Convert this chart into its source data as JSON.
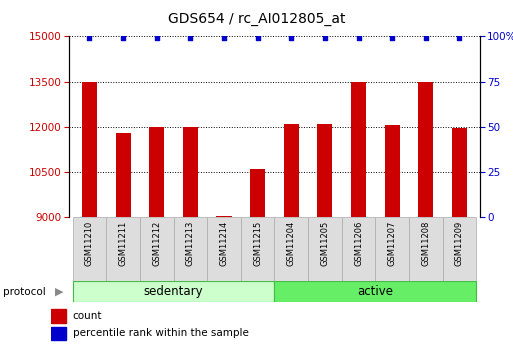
{
  "title": "GDS654 / rc_AI012805_at",
  "samples": [
    "GSM11210",
    "GSM11211",
    "GSM11212",
    "GSM11213",
    "GSM11214",
    "GSM11215",
    "GSM11204",
    "GSM11205",
    "GSM11206",
    "GSM11207",
    "GSM11208",
    "GSM11209"
  ],
  "counts": [
    13500,
    11800,
    12000,
    12000,
    9050,
    10600,
    12100,
    12100,
    13500,
    12050,
    13500,
    11950
  ],
  "percentile_ranks": [
    99,
    99,
    99,
    99,
    99,
    99,
    99,
    99,
    99,
    99,
    99,
    99
  ],
  "groups": [
    "sedentary",
    "sedentary",
    "sedentary",
    "sedentary",
    "sedentary",
    "sedentary",
    "active",
    "active",
    "active",
    "active",
    "active",
    "active"
  ],
  "group_colors": {
    "sedentary": "#ccffcc",
    "active": "#66ee66"
  },
  "bar_color": "#cc0000",
  "dot_color": "#0000cc",
  "ylim_left": [
    9000,
    15000
  ],
  "ylim_right": [
    0,
    100
  ],
  "yticks_left": [
    9000,
    10500,
    12000,
    13500,
    15000
  ],
  "yticks_right": [
    0,
    25,
    50,
    75,
    100
  ],
  "ytick_right_labels": [
    "0",
    "25",
    "50",
    "75",
    "100%"
  ],
  "background_color": "#ffffff",
  "legend_count_color": "#cc0000",
  "legend_pct_color": "#0000cc",
  "label_box_color": "#dddddd",
  "label_box_edge": "#aaaaaa",
  "protocol_arrow_color": "#888888"
}
